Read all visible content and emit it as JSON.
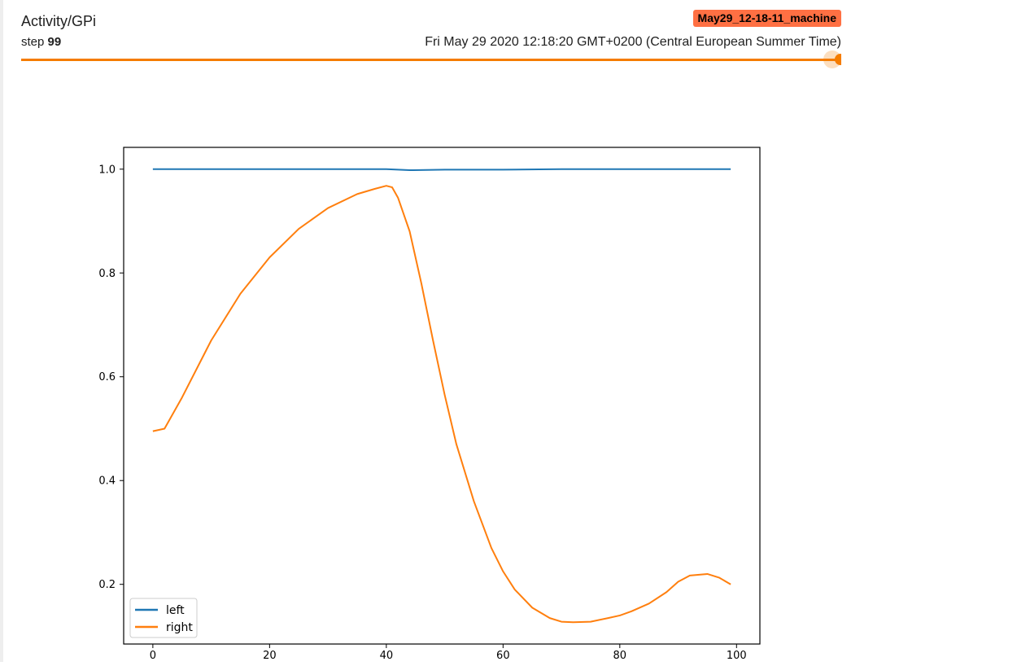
{
  "card": {
    "tag": "Activity/GPi",
    "step_label": "step",
    "step_value": "99",
    "run_name": "May29_12-18-11_machine",
    "wall_time": "Fri May 29 2020 12:18:20 GMT+0200 (Central European Summer Time)",
    "slider_position": 1.0,
    "accent_color": "#f57c00",
    "run_color": "#ff7043"
  },
  "chart_data": {
    "type": "line",
    "title": "",
    "xlabel": "",
    "ylabel": "",
    "xlim": [
      -5,
      104
    ],
    "ylim": [
      0.085,
      1.042
    ],
    "xticks": [
      0,
      20,
      40,
      60,
      80,
      100
    ],
    "xtick_labels": [
      "0",
      "20",
      "40",
      "60",
      "80",
      "100"
    ],
    "yticks": [
      0.2,
      0.4,
      0.6,
      0.8,
      1.0
    ],
    "ytick_labels": [
      "0.2",
      "0.4",
      "0.6",
      "0.8",
      "1.0"
    ],
    "grid": false,
    "legend_position": "lower-left",
    "series": [
      {
        "name": "left",
        "color": "#1f77b4",
        "x": [
          0,
          10,
          20,
          30,
          40,
          42,
          44,
          50,
          60,
          70,
          80,
          90,
          99
        ],
        "y": [
          1.0,
          1.0,
          1.0,
          1.0,
          1.0,
          0.999,
          0.998,
          0.999,
          0.999,
          1.0,
          1.0,
          1.0,
          1.0
        ]
      },
      {
        "name": "right",
        "color": "#ff7f0e",
        "x": [
          0,
          2,
          5,
          10,
          15,
          20,
          25,
          30,
          35,
          38,
          40,
          41,
          42,
          44,
          46,
          48,
          50,
          52,
          55,
          58,
          60,
          62,
          65,
          68,
          70,
          72,
          75,
          78,
          80,
          82,
          85,
          88,
          90,
          92,
          95,
          97,
          99
        ],
        "y": [
          0.495,
          0.5,
          0.56,
          0.67,
          0.76,
          0.83,
          0.885,
          0.925,
          0.952,
          0.962,
          0.968,
          0.965,
          0.945,
          0.88,
          0.78,
          0.67,
          0.565,
          0.47,
          0.36,
          0.27,
          0.225,
          0.19,
          0.155,
          0.135,
          0.128,
          0.127,
          0.128,
          0.135,
          0.14,
          0.148,
          0.163,
          0.185,
          0.205,
          0.217,
          0.22,
          0.213,
          0.2
        ]
      }
    ]
  }
}
